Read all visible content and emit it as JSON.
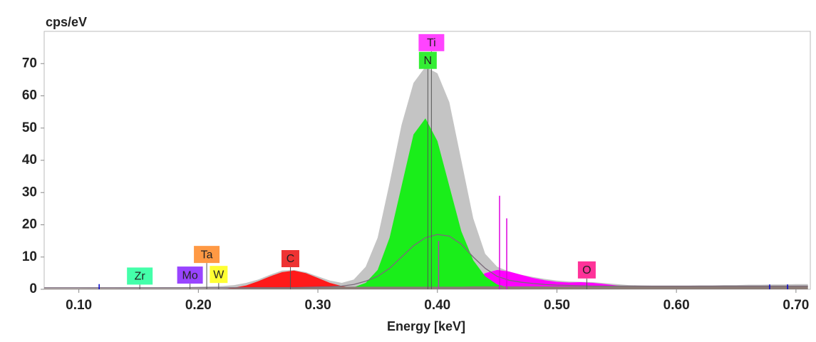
{
  "chart_data": {
    "type": "area",
    "ylabel": "cps/eV",
    "xlabel": "Energy [keV]",
    "xlim": [
      0.071,
      0.712
    ],
    "ylim": [
      0,
      80
    ],
    "yticks": [
      0,
      10,
      20,
      30,
      40,
      50,
      60,
      70
    ],
    "xticks": [
      {
        "value": 0.1,
        "label": "0.10"
      },
      {
        "value": 0.2,
        "label": "0.20"
      },
      {
        "value": 0.3,
        "label": "0.30"
      },
      {
        "value": 0.4,
        "label": "0.40"
      },
      {
        "value": 0.5,
        "label": "0.50"
      },
      {
        "value": 0.6,
        "label": "0.60"
      },
      {
        "value": 0.7,
        "label": "0.70"
      }
    ],
    "x": [
      0.07,
      0.08,
      0.09,
      0.1,
      0.11,
      0.12,
      0.13,
      0.14,
      0.15,
      0.16,
      0.17,
      0.18,
      0.19,
      0.2,
      0.21,
      0.22,
      0.23,
      0.24,
      0.25,
      0.26,
      0.27,
      0.28,
      0.29,
      0.3,
      0.31,
      0.32,
      0.33,
      0.34,
      0.35,
      0.36,
      0.37,
      0.38,
      0.39,
      0.4,
      0.41,
      0.42,
      0.43,
      0.44,
      0.45,
      0.46,
      0.47,
      0.48,
      0.49,
      0.5,
      0.51,
      0.52,
      0.53,
      0.54,
      0.55,
      0.56,
      0.57,
      0.58,
      0.59,
      0.6,
      0.61,
      0.62,
      0.63,
      0.64,
      0.65,
      0.66,
      0.67,
      0.68,
      0.69,
      0.7,
      0.71
    ],
    "series": [
      {
        "color": "#c4c4c4",
        "style": "area",
        "values": [
          0.3,
          0.3,
          0.3,
          0.3,
          0.4,
          0.4,
          0.4,
          0.5,
          0.5,
          0.5,
          0.6,
          0.6,
          0.7,
          0.8,
          0.9,
          1.0,
          1.3,
          2,
          3,
          4.5,
          5.8,
          6,
          5.3,
          4,
          2.7,
          2,
          3,
          7,
          16,
          33,
          51,
          64,
          69,
          67,
          58,
          40,
          22,
          11,
          7,
          5.5,
          4.5,
          3.8,
          3.2,
          2.7,
          2.4,
          2.3,
          2.2,
          1.9,
          1.6,
          1.3,
          1.2,
          1.1,
          1.1,
          1.1,
          1.1,
          1.2,
          1.2,
          1.3,
          1.3,
          1.4,
          1.4,
          1.5,
          1.5,
          1.6,
          1.6
        ]
      },
      {
        "color": "#ff00ff",
        "style": "area",
        "values": [
          0,
          0,
          0,
          0,
          0,
          0,
          0,
          0,
          0,
          0,
          0,
          0,
          0,
          0,
          0,
          0,
          0,
          0,
          0,
          0,
          0,
          0,
          0,
          0,
          0,
          0,
          0,
          0,
          0,
          0,
          0,
          0,
          0,
          0,
          0,
          0,
          2.5,
          5,
          6,
          5.5,
          4.5,
          3.5,
          2.8,
          2.3,
          2.1,
          2.2,
          2,
          1.6,
          1.2,
          0.9,
          0,
          0,
          0,
          0,
          0,
          0,
          0,
          0,
          0,
          0,
          0,
          0,
          0,
          0,
          0
        ]
      },
      {
        "color": "#ff1a1a",
        "style": "area",
        "values": [
          0,
          0,
          0,
          0,
          0,
          0,
          0,
          0,
          0,
          0,
          0,
          0,
          0,
          0,
          0,
          0,
          0.5,
          1.2,
          2.5,
          4,
          5.3,
          5.8,
          5,
          3.5,
          2,
          1,
          0.4,
          0,
          0,
          0,
          0,
          0,
          0,
          0,
          0,
          0,
          0,
          0,
          0,
          0,
          0,
          0,
          0,
          0,
          0,
          0,
          0,
          0,
          0,
          0,
          0,
          0,
          0,
          0,
          0,
          0,
          0,
          0,
          0,
          0,
          0,
          0,
          0,
          0,
          0
        ]
      },
      {
        "color": "#1aee1a",
        "style": "area",
        "values": [
          0,
          0,
          0,
          0,
          0,
          0,
          0,
          0,
          0,
          0,
          0,
          0,
          0,
          0,
          0,
          0,
          0,
          0,
          0,
          0,
          0,
          0,
          0,
          0,
          0,
          0,
          0.6,
          2,
          6,
          16,
          32,
          48,
          53,
          46,
          32,
          18,
          9,
          4,
          1.5,
          0.5,
          0,
          0,
          0,
          0,
          0,
          0,
          0,
          0,
          0,
          0,
          0,
          0,
          0,
          0,
          0,
          0,
          0,
          0,
          0,
          0,
          0,
          0,
          0,
          0,
          0
        ]
      },
      {
        "color": "#8b7b76",
        "style": "area",
        "values": [
          0.2,
          0.2,
          0.2,
          0.2,
          0.2,
          0.2,
          0.2,
          0.2,
          0.2,
          0.2,
          0.2,
          0.2,
          0.2,
          0.2,
          0.2,
          0.2,
          0.3,
          0.4,
          0.5,
          0.5,
          0.6,
          0.6,
          0.7,
          0.7,
          0.8,
          0.8,
          0.8,
          0.8,
          0.8,
          0.8,
          0.8,
          0.8,
          0.8,
          0.8,
          0.8,
          0.8,
          0.9,
          0.9,
          0.9,
          0.9,
          0.9,
          0.9,
          0.9,
          0.9,
          0.9,
          0.9,
          1.0,
          1.0,
          1.0,
          1.0,
          1.0,
          1.0,
          1.0,
          1.0,
          1.0,
          1.0,
          1.1,
          1.1,
          1.1,
          1.1,
          1.1,
          1.1,
          1.1,
          1.1,
          1.1
        ]
      },
      {
        "color": "#7a6a7a",
        "style": "line",
        "values": [
          0.5,
          0.5,
          0.5,
          0.5,
          0.5,
          0.5,
          0.5,
          0.5,
          0.5,
          0.5,
          0.5,
          0.5,
          0.5,
          0.5,
          0.5,
          0.5,
          0.5,
          0.5,
          0.5,
          0.5,
          0.5,
          0.5,
          0.6,
          0.7,
          0.8,
          1,
          1.5,
          2.5,
          4,
          6.5,
          10,
          13.5,
          16,
          17,
          16.5,
          14,
          10,
          6.5,
          4,
          2.8,
          2.2,
          1.8,
          1.5,
          1.3,
          1.2,
          1.1,
          1,
          1,
          1,
          1,
          1,
          1,
          1,
          1,
          1,
          1,
          1,
          1,
          1,
          1,
          1,
          1,
          1,
          1,
          1
        ]
      }
    ],
    "lines": [
      {
        "x": 0.452,
        "value": 29,
        "color": "#dd00dd"
      },
      {
        "x": 0.458,
        "value": 22,
        "color": "#dd00dd"
      },
      {
        "x": 0.401,
        "value": 15,
        "color": "#b040b0"
      },
      {
        "x": 0.117,
        "value": 1.6,
        "color": "#0000cc"
      },
      {
        "x": 0.678,
        "value": 1.5,
        "color": "#0000cc"
      },
      {
        "x": 0.693,
        "value": 1.5,
        "color": "#0000cc"
      }
    ],
    "peak_labels": [
      {
        "text": "Ti",
        "x": 0.395,
        "y": 76.5,
        "color": "#ff44ff"
      },
      {
        "text": "N",
        "x": 0.392,
        "y": 71,
        "color": "#33ee33"
      },
      {
        "text": "C",
        "x": 0.277,
        "y": 9.5,
        "color": "#ee3333"
      },
      {
        "text": "Ta",
        "x": 0.207,
        "y": 10.8,
        "color": "#ff9944"
      },
      {
        "text": "Mo",
        "x": 0.193,
        "y": 4.4,
        "color": "#9944ff"
      },
      {
        "text": "W",
        "x": 0.217,
        "y": 4.6,
        "color": "#ffff33"
      },
      {
        "text": "Zr",
        "x": 0.151,
        "y": 4.1,
        "color": "#44ffaa"
      },
      {
        "text": "O",
        "x": 0.525,
        "y": 6,
        "color": "#ff3399"
      }
    ]
  }
}
